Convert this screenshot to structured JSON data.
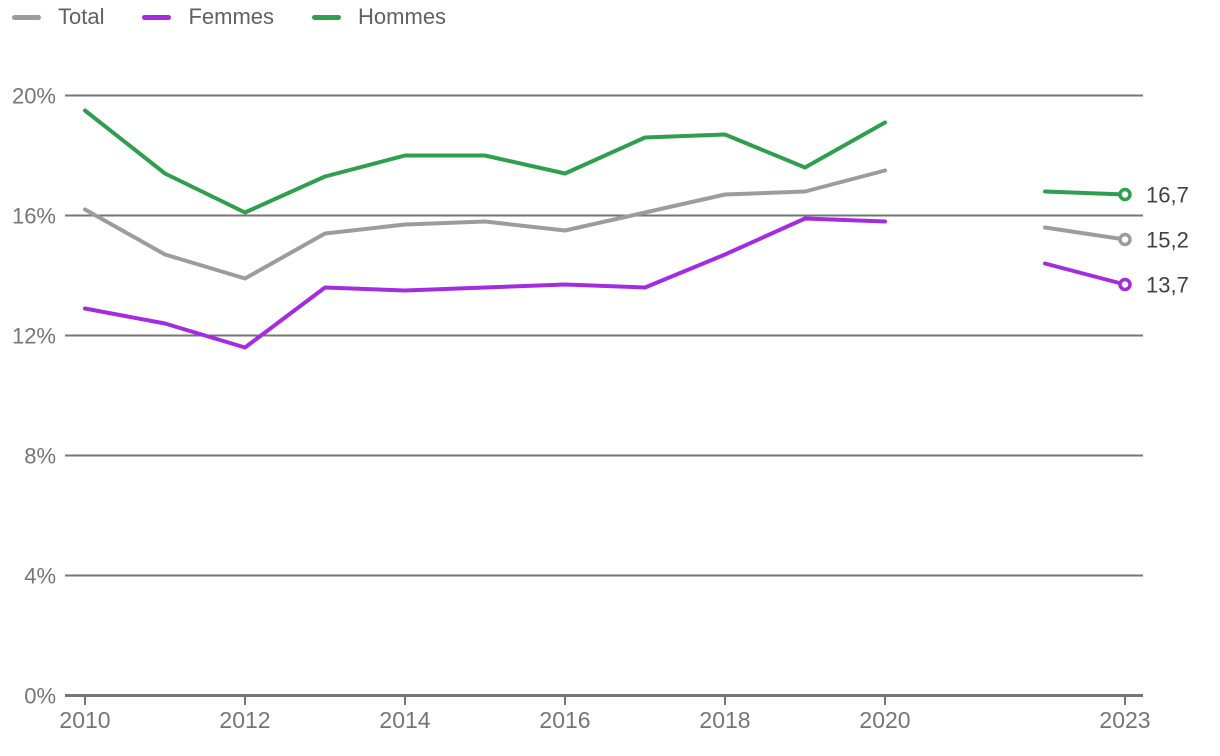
{
  "legend": {
    "items": [
      {
        "label": "Total",
        "color": "#9c9c9c"
      },
      {
        "label": "Femmes",
        "color": "#a32ce0"
      },
      {
        "label": "Hommes",
        "color": "#2f9e4f"
      }
    ]
  },
  "chart_data": {
    "type": "line",
    "title": "",
    "xlabel": "",
    "ylabel": "",
    "unit": "%",
    "grid": true,
    "legend_position": "top-left",
    "x_range": [
      2010,
      2023
    ],
    "ylim": [
      0,
      20
    ],
    "x_main": [
      2010,
      2011,
      2012,
      2013,
      2014,
      2015,
      2016,
      2017,
      2018,
      2019,
      2020
    ],
    "x_recent": [
      2022,
      2023
    ],
    "x_ticks": [
      {
        "value": 2010,
        "label": "2010"
      },
      {
        "value": 2012,
        "label": "2012"
      },
      {
        "value": 2014,
        "label": "2014"
      },
      {
        "value": 2016,
        "label": "2016"
      },
      {
        "value": 2018,
        "label": "2018"
      },
      {
        "value": 2020,
        "label": "2020"
      },
      {
        "value": 2023,
        "label": "2023"
      }
    ],
    "y_ticks": [
      {
        "value": 0,
        "label": "0%"
      },
      {
        "value": 4,
        "label": "4%"
      },
      {
        "value": 8,
        "label": "8%"
      },
      {
        "value": 12,
        "label": "12%"
      },
      {
        "value": 16,
        "label": "16%"
      },
      {
        "value": 20,
        "label": "20%"
      }
    ],
    "series": [
      {
        "name": "Total",
        "key": "total",
        "color": "#9c9c9c",
        "values_main": [
          16.2,
          14.7,
          13.9,
          15.4,
          15.7,
          15.8,
          15.5,
          16.1,
          16.7,
          16.8,
          17.5
        ],
        "values_recent": [
          15.6,
          15.2
        ],
        "end_label": "15,2"
      },
      {
        "name": "Femmes",
        "key": "femmes",
        "color": "#a32ce0",
        "values_main": [
          12.9,
          12.4,
          11.6,
          13.6,
          13.5,
          13.6,
          13.7,
          13.6,
          14.7,
          15.9,
          15.8
        ],
        "values_recent": [
          14.4,
          13.7
        ],
        "end_label": "13,7"
      },
      {
        "name": "Hommes",
        "key": "hommes",
        "color": "#2f9e4f",
        "values_main": [
          19.5,
          17.4,
          16.1,
          17.3,
          18.0,
          18.0,
          17.4,
          18.6,
          18.7,
          17.6,
          19.1
        ],
        "values_recent": [
          16.8,
          16.7
        ],
        "end_label": "16,7"
      }
    ]
  },
  "style": {
    "grid_color": "#757575",
    "tick_text_color": "#757575",
    "end_label_color": "#424242"
  }
}
